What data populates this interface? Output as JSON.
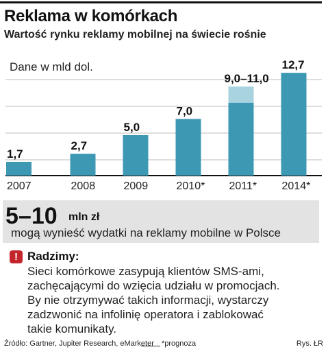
{
  "header": {
    "title": "Reklama w komórkach",
    "subtitle": "Wartość rynku reklamy mobilnej na świecie rośnie"
  },
  "chart_data": {
    "type": "bar",
    "ylabel": "Dane w mld dol.",
    "categories": [
      "2007",
      "2008",
      "2009",
      "2010*",
      "2011*",
      "2014*"
    ],
    "values": [
      1.7,
      2.7,
      5.0,
      7.0,
      9.0,
      12.7
    ],
    "range_high": [
      null,
      null,
      null,
      null,
      11.0,
      null
    ],
    "value_labels": [
      "1,7",
      "2,7",
      "5,0",
      "7,0",
      "9,0–11,0",
      "12,7"
    ],
    "ylim": [
      0,
      13
    ],
    "grid": true,
    "colors": {
      "bar": "#3d98b3",
      "range": "#a9d3df",
      "grid": "#bdbdbd"
    }
  },
  "callout": {
    "value": "5–10",
    "unit": "mln zł",
    "text": "mogą wynieść wydatki na reklamy mobilne w Polsce"
  },
  "advice": {
    "icon": "!",
    "title": "Radzimy:",
    "lines": [
      "Sieci komórkowe zasypują klientów SMS-ami,",
      "zachęcającymi do wzięcia udziału w promocjach.",
      "By nie otrzymywać takich informacji, wystarczy",
      "zadzwonić na infolinię operatora i zablokować",
      "takie komunikaty."
    ]
  },
  "footer": {
    "source": "Źródło: Gartner, Jupiter Research, eMarketer",
    "note": "*prognoza",
    "credit": "Rys. ŁR"
  }
}
